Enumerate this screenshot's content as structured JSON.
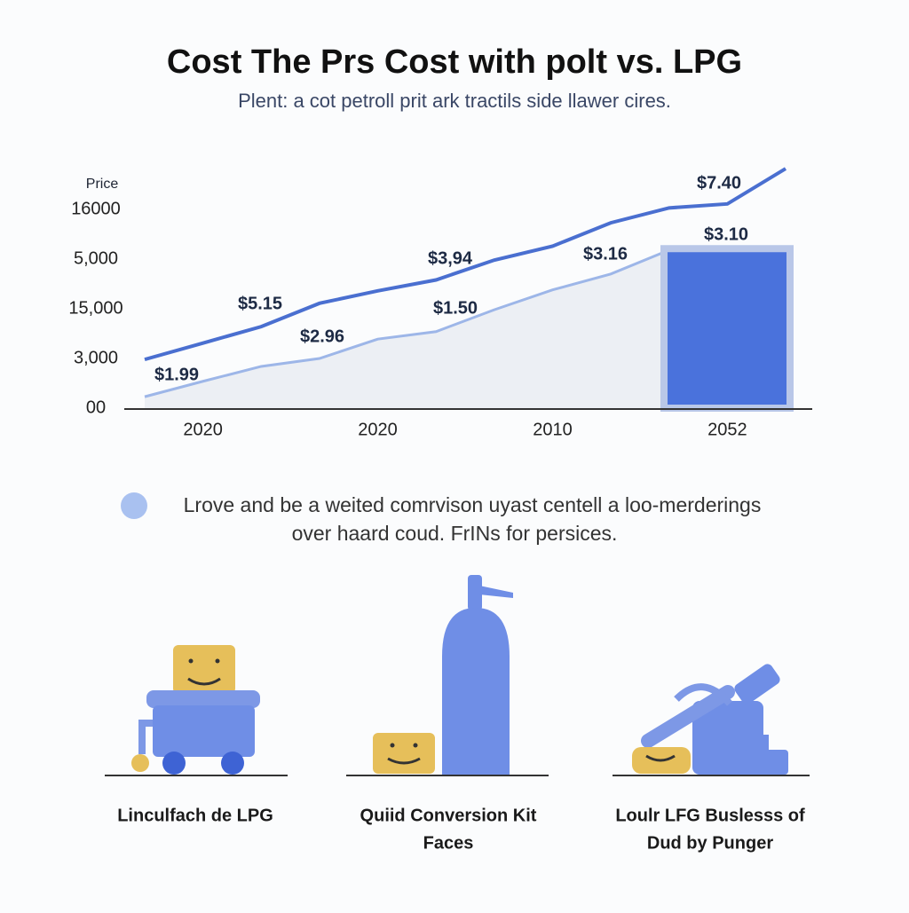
{
  "chart_data": {
    "type": "line",
    "title": "Cost The Prs Cost with polt vs. LPG",
    "subtitle": "Plent: a cot petroll prit ark tractils side llawer cires.",
    "y_label": "Price",
    "categories": [
      null,
      "2020",
      null,
      null,
      "2020",
      null,
      null,
      "2010",
      null,
      null,
      "2052",
      null
    ],
    "series": [
      {
        "color": "#4a6fd0",
        "values": [
          0.98,
          1.31,
          1.64,
          2.11,
          2.36,
          2.58,
          2.98,
          3.26,
          3.73,
          4.03,
          4.11,
          4.82
        ]
      },
      {
        "color": "#9db6e8",
        "fill": "#eceff4",
        "values": [
          0.23,
          0.54,
          0.84,
          1.0,
          1.39,
          1.54,
          1.98,
          2.38,
          2.7,
          3.18,
          3.18,
          3.18
        ]
      }
    ],
    "highlight_bar": {
      "value": 3.21,
      "color": "#4a72dc",
      "border": "#b9c7e8"
    },
    "ylim": [
      0,
      5
    ],
    "yticks": [
      {
        "value": 0,
        "label": "00"
      },
      {
        "value": 1,
        "label": "3,000"
      },
      {
        "value": 2,
        "label": "15,000"
      },
      {
        "value": 3,
        "label": "5,000"
      },
      {
        "value": 4,
        "label": "16000"
      }
    ],
    "annotations": [
      "$7.40",
      "$3.10",
      "$3,94",
      "$3.16",
      "$5.15",
      "$1.50",
      "$2.96",
      "$1.99"
    ]
  },
  "note": [
    "Lrove and be a weited comrvison uyast centell a loo-merderings",
    "over haard coud. FrINs for persices."
  ],
  "items": [
    {
      "caption": [
        "Linculfach de LPG"
      ]
    },
    {
      "caption": [
        "Quiid Conversion Kit",
        "Faces"
      ]
    },
    {
      "caption": [
        "Loulr LFG Buslesss of",
        "Dud by Punger"
      ]
    }
  ]
}
